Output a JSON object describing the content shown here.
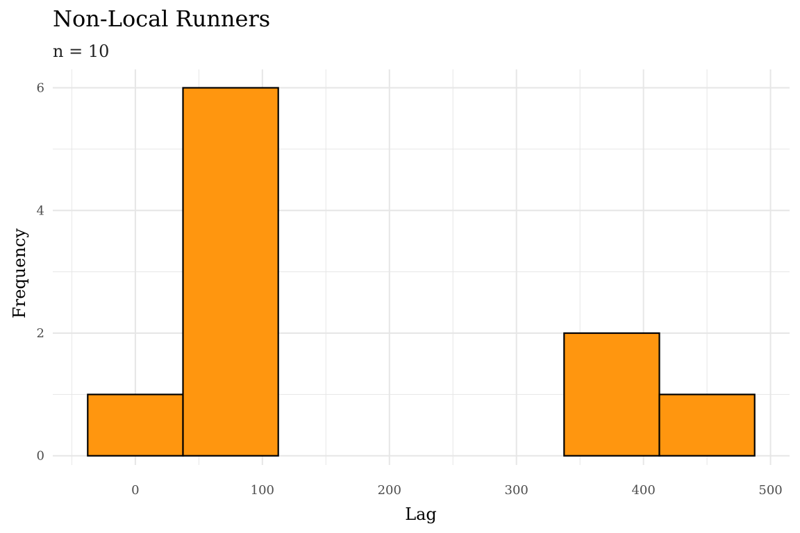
{
  "chart_data": {
    "type": "bar",
    "title": "Non-Local Runners",
    "subtitle": "n = 10",
    "xlabel": "Lag",
    "ylabel": "Frequency",
    "bin_edges": [
      -37.5,
      37.5,
      112.5,
      187.5,
      262.5,
      337.5,
      412.5,
      487.5
    ],
    "counts": [
      1,
      6,
      0,
      0,
      0,
      2,
      1
    ],
    "xlim": [
      -65,
      515
    ],
    "ylim": [
      -0.15,
      6.3
    ],
    "x_ticks": [
      0,
      100,
      200,
      300,
      400,
      500
    ],
    "y_ticks": [
      0,
      2,
      4,
      6
    ],
    "x_tick_labels": [
      "0",
      "100",
      "200",
      "300",
      "400",
      "500"
    ],
    "y_tick_labels": [
      "0",
      "2",
      "4",
      "6"
    ],
    "grid": true,
    "fill_color": "#FF960F",
    "outline_color": "#000000",
    "grid_color": "#e6e6e6"
  }
}
